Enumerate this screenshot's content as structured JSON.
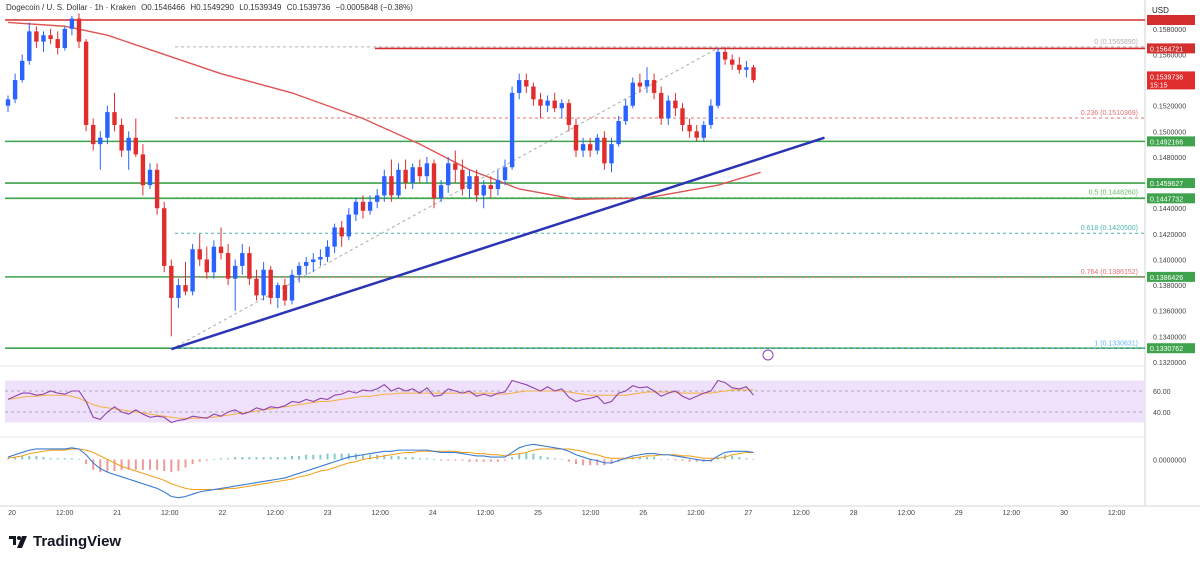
{
  "header": {
    "symbol": "Dogecoin / U. S. Dollar · 1h · Kraken",
    "open": "O0.1546466",
    "high": "H0.1549290",
    "low": "L0.1539349",
    "close": "C0.1539736",
    "change": "−0.0005848 (−0.38%)"
  },
  "currency": "USD",
  "brand": "TradingView",
  "colors": {
    "up": "#2962ff",
    "down": "#e02d2d",
    "ma": "#e05454",
    "trendline": "#2a34b5",
    "support": "#3fa34d",
    "resistance": "#d32f2f",
    "rsi_band": "#efe1fb",
    "rsi_line": "#8e44ad",
    "rsi_ma": "#f5b041",
    "macd_line": "#3a7bd5",
    "signal_line": "#f39c12",
    "hist": "#26a69a"
  },
  "chart_data": {
    "type": "candlestick",
    "ylim": [
      0.132,
      0.159
    ],
    "y_ticks": [
      "0.1580000",
      "0.1560000",
      "0.1540000",
      "0.1520000",
      "0.1500000",
      "0.1480000",
      "0.1460000",
      "0.1440000",
      "0.1420000",
      "0.1400000",
      "0.1380000",
      "0.1360000",
      "0.1340000",
      "0.1320000"
    ],
    "x_ticks": [
      "20",
      "12:00",
      "21",
      "12:00",
      "22",
      "12:00",
      "23",
      "12:00",
      "24",
      "12:00",
      "25",
      "12:00",
      "26",
      "12:00",
      "27",
      "12:00",
      "28",
      "12:00",
      "29",
      "12:00",
      "30",
      "12:00"
    ],
    "candles": [
      [
        0.152,
        0.1528,
        0.1515,
        0.1525
      ],
      [
        0.1525,
        0.1545,
        0.1522,
        0.154
      ],
      [
        0.154,
        0.156,
        0.1538,
        0.1555
      ],
      [
        0.1555,
        0.1585,
        0.1552,
        0.1578
      ],
      [
        0.1578,
        0.1582,
        0.1565,
        0.157
      ],
      [
        0.157,
        0.1578,
        0.1562,
        0.1575
      ],
      [
        0.1575,
        0.158,
        0.1568,
        0.1572
      ],
      [
        0.1572,
        0.1578,
        0.156,
        0.1565
      ],
      [
        0.1565,
        0.1582,
        0.1563,
        0.158
      ],
      [
        0.158,
        0.159,
        0.1575,
        0.1588
      ],
      [
        0.1588,
        0.1592,
        0.1565,
        0.157
      ],
      [
        0.157,
        0.1572,
        0.15,
        0.1505
      ],
      [
        0.1505,
        0.151,
        0.1485,
        0.149
      ],
      [
        0.149,
        0.15,
        0.147,
        0.1495
      ],
      [
        0.1495,
        0.152,
        0.149,
        0.1515
      ],
      [
        0.1515,
        0.153,
        0.15,
        0.1505
      ],
      [
        0.1505,
        0.151,
        0.148,
        0.1485
      ],
      [
        0.1485,
        0.15,
        0.147,
        0.1495
      ],
      [
        0.1495,
        0.151,
        0.148,
        0.1482
      ],
      [
        0.1482,
        0.149,
        0.145,
        0.1458
      ],
      [
        0.1458,
        0.1475,
        0.1455,
        0.147
      ],
      [
        0.147,
        0.1475,
        0.1435,
        0.144
      ],
      [
        0.144,
        0.1445,
        0.139,
        0.1395
      ],
      [
        0.1395,
        0.14,
        0.134,
        0.137
      ],
      [
        0.137,
        0.1385,
        0.1362,
        0.138
      ],
      [
        0.138,
        0.1398,
        0.1372,
        0.1375
      ],
      [
        0.1375,
        0.1412,
        0.1372,
        0.1408
      ],
      [
        0.1408,
        0.142,
        0.1395,
        0.14
      ],
      [
        0.14,
        0.141,
        0.1385,
        0.139
      ],
      [
        0.139,
        0.1415,
        0.1385,
        0.141
      ],
      [
        0.141,
        0.1425,
        0.14,
        0.1405
      ],
      [
        0.1405,
        0.1412,
        0.138,
        0.1385
      ],
      [
        0.1385,
        0.14,
        0.136,
        0.1395
      ],
      [
        0.1395,
        0.1412,
        0.1388,
        0.1405
      ],
      [
        0.1405,
        0.141,
        0.138,
        0.1385
      ],
      [
        0.1385,
        0.1392,
        0.1368,
        0.1372
      ],
      [
        0.1372,
        0.1398,
        0.1368,
        0.1392
      ],
      [
        0.1392,
        0.1395,
        0.1365,
        0.137
      ],
      [
        0.137,
        0.1382,
        0.1362,
        0.138
      ],
      [
        0.138,
        0.1385,
        0.1364,
        0.1368
      ],
      [
        0.1368,
        0.1392,
        0.1365,
        0.1388
      ],
      [
        0.1388,
        0.1398,
        0.1382,
        0.1395
      ],
      [
        0.1395,
        0.1402,
        0.1388,
        0.1398
      ],
      [
        0.1398,
        0.1405,
        0.139,
        0.14
      ],
      [
        0.14,
        0.1408,
        0.1395,
        0.1402
      ],
      [
        0.1402,
        0.1415,
        0.1398,
        0.141
      ],
      [
        0.141,
        0.1428,
        0.1405,
        0.1425
      ],
      [
        0.1425,
        0.143,
        0.141,
        0.1418
      ],
      [
        0.1418,
        0.144,
        0.1415,
        0.1435
      ],
      [
        0.1435,
        0.1448,
        0.143,
        0.1445
      ],
      [
        0.1445,
        0.145,
        0.1432,
        0.1438
      ],
      [
        0.1438,
        0.145,
        0.1435,
        0.1445
      ],
      [
        0.1445,
        0.1455,
        0.144,
        0.145
      ],
      [
        0.145,
        0.147,
        0.1445,
        0.1465
      ],
      [
        0.1465,
        0.1478,
        0.1445,
        0.145
      ],
      [
        0.145,
        0.1475,
        0.1448,
        0.147
      ],
      [
        0.147,
        0.1478,
        0.1455,
        0.146
      ],
      [
        0.146,
        0.1475,
        0.1455,
        0.1472
      ],
      [
        0.1472,
        0.1478,
        0.146,
        0.1465
      ],
      [
        0.1465,
        0.148,
        0.146,
        0.1475
      ],
      [
        0.1475,
        0.1478,
        0.144,
        0.1448
      ],
      [
        0.1448,
        0.1462,
        0.1445,
        0.1458
      ],
      [
        0.1458,
        0.148,
        0.1452,
        0.1475
      ],
      [
        0.1475,
        0.1485,
        0.146,
        0.147
      ],
      [
        0.147,
        0.1478,
        0.145,
        0.1455
      ],
      [
        0.1455,
        0.147,
        0.1448,
        0.1465
      ],
      [
        0.1465,
        0.147,
        0.1445,
        0.145
      ],
      [
        0.145,
        0.1462,
        0.144,
        0.1458
      ],
      [
        0.1458,
        0.1465,
        0.1448,
        0.1455
      ],
      [
        0.1455,
        0.147,
        0.145,
        0.1462
      ],
      [
        0.1462,
        0.1478,
        0.1458,
        0.1472
      ],
      [
        0.1472,
        0.1535,
        0.147,
        0.153
      ],
      [
        0.153,
        0.1545,
        0.1525,
        0.154
      ],
      [
        0.154,
        0.1545,
        0.153,
        0.1535
      ],
      [
        0.1535,
        0.1538,
        0.152,
        0.1525
      ],
      [
        0.1525,
        0.153,
        0.151,
        0.152
      ],
      [
        0.152,
        0.1528,
        0.1515,
        0.1524
      ],
      [
        0.1524,
        0.153,
        0.1515,
        0.1518
      ],
      [
        0.1518,
        0.1525,
        0.151,
        0.1522
      ],
      [
        0.1522,
        0.1525,
        0.15,
        0.1505
      ],
      [
        0.1505,
        0.151,
        0.148,
        0.1485
      ],
      [
        0.1485,
        0.1495,
        0.148,
        0.149
      ],
      [
        0.149,
        0.1495,
        0.148,
        0.1485
      ],
      [
        0.1485,
        0.1498,
        0.1482,
        0.1495
      ],
      [
        0.1495,
        0.15,
        0.147,
        0.1475
      ],
      [
        0.1475,
        0.1495,
        0.1468,
        0.149
      ],
      [
        0.149,
        0.1512,
        0.1488,
        0.1508
      ],
      [
        0.1508,
        0.1525,
        0.1505,
        0.152
      ],
      [
        0.152,
        0.1542,
        0.1518,
        0.1538
      ],
      [
        0.1538,
        0.1545,
        0.153,
        0.1535
      ],
      [
        0.1535,
        0.155,
        0.153,
        0.154
      ],
      [
        0.154,
        0.1545,
        0.1525,
        0.153
      ],
      [
        0.153,
        0.1535,
        0.1505,
        0.151
      ],
      [
        0.151,
        0.1528,
        0.1505,
        0.1524
      ],
      [
        0.1524,
        0.153,
        0.1512,
        0.1518
      ],
      [
        0.1518,
        0.1522,
        0.15,
        0.1505
      ],
      [
        0.1505,
        0.151,
        0.1495,
        0.15
      ],
      [
        0.15,
        0.1505,
        0.1492,
        0.1495
      ],
      [
        0.1495,
        0.1508,
        0.1492,
        0.1505
      ],
      [
        0.1505,
        0.1525,
        0.1502,
        0.152
      ],
      [
        0.152,
        0.1565,
        0.1518,
        0.1562
      ],
      [
        0.1562,
        0.1566,
        0.1552,
        0.1556
      ],
      [
        0.1556,
        0.156,
        0.1548,
        0.1552
      ],
      [
        0.1552,
        0.1558,
        0.1545,
        0.1548
      ],
      [
        0.1548,
        0.1555,
        0.1542,
        0.155
      ],
      [
        0.155,
        0.1552,
        0.1538,
        0.154
      ]
    ],
    "moving_average": [
      [
        0,
        0.1585
      ],
      [
        8,
        0.1582
      ],
      [
        14,
        0.1575
      ],
      [
        22,
        0.156
      ],
      [
        30,
        0.1545
      ],
      [
        40,
        0.153
      ],
      [
        50,
        0.151
      ],
      [
        58,
        0.149
      ],
      [
        65,
        0.147
      ],
      [
        72,
        0.1455
      ],
      [
        80,
        0.1447
      ],
      [
        90,
        0.1448
      ],
      [
        100,
        0.1458
      ],
      [
        106,
        0.1468
      ]
    ],
    "trendline": [
      [
        23,
        0.133
      ],
      [
        115,
        0.1495
      ]
    ],
    "fib_dashed": [
      [
        23,
        0.133
      ],
      [
        100,
        0.1565
      ]
    ],
    "horizontal_levels": [
      {
        "label": "0.1564721",
        "price": 0.1564721,
        "color": "resistance",
        "style": "solid"
      },
      {
        "label": "0.1492166",
        "price": 0.1492166,
        "color": "support",
        "style": "solid"
      },
      {
        "label": "0.1459627",
        "price": 0.1459627,
        "color": "support",
        "style": "solid"
      },
      {
        "label": "0.1447732",
        "price": 0.1447732,
        "color": "support",
        "style": "solid"
      },
      {
        "label": "0.1386426",
        "price": 0.1386426,
        "color": "support",
        "style": "solid"
      },
      {
        "label": "0.1330762",
        "price": 0.1330762,
        "color": "support",
        "style": "solid"
      }
    ],
    "fib_levels": [
      {
        "label": "0 (0.1565890)",
        "price": 0.156589,
        "color": "#b0b0b0"
      },
      {
        "label": "0.236 (0.1510369)",
        "price": 0.1510369,
        "color": "#e57373"
      },
      {
        "label": "0.5 (0.1448260)",
        "price": 0.144826,
        "color": "#66bb6a"
      },
      {
        "label": "0.618 (0.1420500)",
        "price": 0.14205,
        "color": "#4db6ac"
      },
      {
        "label": "0.764 (0.1386152)",
        "price": 0.1386152,
        "color": "#e57373"
      },
      {
        "label": "1 (0.1330631)",
        "price": 0.1330631,
        "color": "#64b5f6"
      }
    ],
    "current_price": {
      "label": "0.1539736",
      "countdown": "15:15",
      "price": 0.1539736
    },
    "rsi": {
      "levels": [
        "60.00",
        "40.00"
      ],
      "ylim": [
        20,
        80
      ],
      "values": [
        52,
        55,
        58,
        58,
        56,
        57,
        60,
        58,
        57,
        60,
        60,
        50,
        35,
        33,
        40,
        45,
        40,
        38,
        42,
        38,
        35,
        36,
        35,
        30,
        32,
        33,
        36,
        35,
        34,
        38,
        36,
        40,
        42,
        38,
        40,
        44,
        42,
        45,
        44,
        46,
        50,
        49,
        52,
        50,
        53,
        52,
        56,
        57,
        60,
        58,
        61,
        60,
        62,
        66,
        60,
        63,
        60,
        62,
        58,
        63,
        55,
        56,
        62,
        60,
        58,
        60,
        55,
        57,
        55,
        58,
        59,
        70,
        68,
        66,
        63,
        60,
        64,
        60,
        62,
        54,
        50,
        52,
        53,
        55,
        48,
        50,
        58,
        60,
        65,
        63,
        64,
        60,
        55,
        58,
        60,
        55,
        52,
        55,
        58,
        60,
        70,
        68,
        63,
        62,
        64,
        56
      ],
      "ma": [
        52,
        53,
        54,
        55,
        55,
        56,
        56,
        56,
        56,
        55,
        53,
        50,
        47,
        45,
        44,
        43,
        42,
        41,
        40,
        39,
        38,
        37,
        36,
        35,
        34,
        34,
        34,
        34,
        35,
        35,
        36,
        37,
        38,
        39,
        40,
        41,
        42,
        43,
        44,
        45,
        46,
        47,
        48,
        49,
        50,
        50,
        51,
        52,
        53,
        54,
        55,
        55,
        56,
        57,
        57,
        58,
        58,
        58,
        58,
        58,
        58,
        58,
        58,
        58,
        58,
        58,
        58,
        58,
        58,
        57,
        57,
        58,
        59,
        60,
        60,
        60,
        60,
        60,
        60,
        59,
        58,
        57,
        56,
        56,
        56,
        56,
        56,
        56,
        57,
        58,
        59,
        59,
        59,
        59,
        59,
        58,
        58,
        58,
        58,
        58,
        59,
        60,
        61,
        61,
        61,
        61
      ]
    },
    "macd": {
      "label": "0.0000000",
      "ylim": [
        -0.0035,
        0.0015
      ],
      "macd": [
        0.0002,
        0.0004,
        0.0006,
        0.0008,
        0.0009,
        0.0009,
        0.0009,
        0.0009,
        0.0009,
        0.001,
        0.0009,
        0.0004,
        -0.0003,
        -0.0008,
        -0.0011,
        -0.0013,
        -0.0015,
        -0.0017,
        -0.0019,
        -0.0021,
        -0.0023,
        -0.0025,
        -0.0028,
        -0.0032,
        -0.0033,
        -0.0032,
        -0.003,
        -0.0028,
        -0.0027,
        -0.0026,
        -0.0025,
        -0.0024,
        -0.0023,
        -0.0022,
        -0.0021,
        -0.002,
        -0.0019,
        -0.0018,
        -0.0017,
        -0.0016,
        -0.0014,
        -0.0012,
        -0.001,
        -0.0008,
        -0.0006,
        -0.0004,
        -0.0002,
        0.0,
        0.0002,
        0.0003,
        0.0004,
        0.0005,
        0.0006,
        0.0007,
        0.0007,
        0.0008,
        0.0008,
        0.0008,
        0.0008,
        0.0008,
        0.0007,
        0.0006,
        0.0006,
        0.0006,
        0.0005,
        0.0004,
        0.0003,
        0.0003,
        0.0002,
        0.0002,
        0.0002,
        0.0006,
        0.001,
        0.0012,
        0.0013,
        0.0012,
        0.0011,
        0.001,
        0.0009,
        0.0007,
        0.0004,
        0.0002,
        0.0,
        -0.0001,
        -0.0003,
        -0.0003,
        -0.0001,
        0.0001,
        0.0003,
        0.0004,
        0.0005,
        0.0005,
        0.0004,
        0.0004,
        0.0003,
        0.0002,
        0.0001,
        0.0,
        -0.0001,
        -0.0001,
        0.0003,
        0.0006,
        0.0007,
        0.0007,
        0.0007,
        0.0006
      ],
      "signal": [
        0.0001,
        0.0002,
        0.0003,
        0.0005,
        0.0006,
        0.0007,
        0.0008,
        0.0008,
        0.0008,
        0.0009,
        0.0009,
        0.0008,
        0.0006,
        0.0003,
        0.0,
        -0.0003,
        -0.0006,
        -0.0008,
        -0.001,
        -0.0012,
        -0.0014,
        -0.0016,
        -0.0018,
        -0.0021,
        -0.0023,
        -0.0025,
        -0.0026,
        -0.0026,
        -0.0026,
        -0.0026,
        -0.0026,
        -0.0025,
        -0.0025,
        -0.0024,
        -0.0023,
        -0.0022,
        -0.0021,
        -0.002,
        -0.0019,
        -0.0018,
        -0.0017,
        -0.0015,
        -0.0014,
        -0.0012,
        -0.001,
        -0.0009,
        -0.0007,
        -0.0005,
        -0.0003,
        -0.0002,
        0.0,
        0.0001,
        0.0002,
        0.0003,
        0.0004,
        0.0005,
        0.0006,
        0.0006,
        0.0007,
        0.0007,
        0.0007,
        0.0007,
        0.0007,
        0.0007,
        0.0006,
        0.0006,
        0.0005,
        0.0005,
        0.0004,
        0.0004,
        0.0003,
        0.0004,
        0.0005,
        0.0006,
        0.0008,
        0.0009,
        0.0009,
        0.0009,
        0.0009,
        0.0009,
        0.0008,
        0.0007,
        0.0005,
        0.0004,
        0.0002,
        0.0001,
        0.0001,
        0.0001,
        0.0001,
        0.0002,
        0.0003,
        0.0003,
        0.0004,
        0.0004,
        0.0004,
        0.0003,
        0.0003,
        0.0002,
        0.0001,
        0.0001,
        0.0001,
        0.0002,
        0.0004,
        0.0005,
        0.0006,
        0.0006
      ]
    }
  }
}
